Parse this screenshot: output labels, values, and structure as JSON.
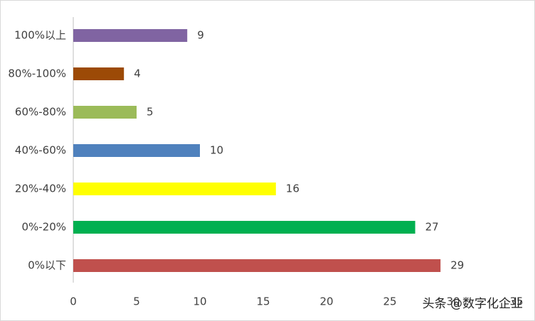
{
  "chart_data": {
    "type": "bar",
    "orientation": "horizontal",
    "categories": [
      "100%以上",
      "80%-100%",
      "60%-80%",
      "40%-60%",
      "20%-40%",
      "0%-20%",
      "0%以下"
    ],
    "values": [
      9,
      4,
      5,
      10,
      16,
      27,
      29
    ],
    "colors": [
      "#8064a2",
      "#9c4a06",
      "#9bbb59",
      "#4f81bd",
      "#ffff00",
      "#00b050",
      "#c0504d"
    ],
    "xlim": [
      0,
      35
    ],
    "xticks": [
      0,
      5,
      10,
      15,
      20,
      25,
      30,
      35
    ],
    "annotation": "头条 @数字化企业"
  }
}
